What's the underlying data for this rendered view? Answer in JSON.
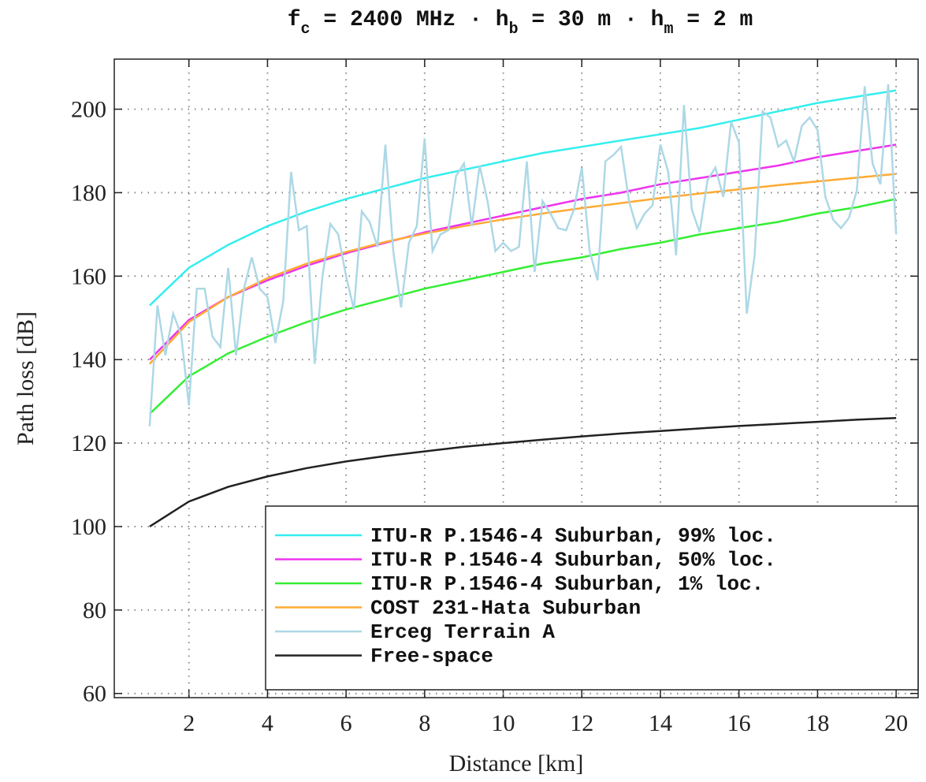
{
  "chart_data": {
    "type": "line",
    "title": [
      "f",
      "c",
      " = 2400 MHz · h",
      "b",
      " = 30 m · h",
      "m",
      " = 2 m"
    ],
    "xlabel": "Distance [km]",
    "ylabel": "Path loss [dB]",
    "xlim": [
      0.1,
      20.56
    ],
    "ylim": [
      59,
      212
    ],
    "xticks": [
      2,
      4,
      6,
      8,
      10,
      12,
      14,
      16,
      18,
      20
    ],
    "yticks": [
      60,
      80,
      100,
      120,
      140,
      160,
      180,
      200
    ],
    "grid": true,
    "legend": "lower right",
    "series": [
      {
        "name": "ITU-R P.1546-4 Suburban, 99% loc.",
        "color": "#33eeee",
        "x": [
          1,
          2,
          3,
          4,
          5,
          6,
          7,
          8,
          9,
          10,
          11,
          12,
          13,
          14,
          15,
          16,
          17,
          18,
          19,
          20
        ],
        "values": [
          153,
          162,
          167.5,
          172,
          175.5,
          178.5,
          181,
          183.5,
          185.5,
          187.5,
          189.5,
          191,
          192.5,
          194,
          195.5,
          197.5,
          199.5,
          201.5,
          203,
          204.5
        ]
      },
      {
        "name": "ITU-R P.1546-4 Suburban, 50% loc.",
        "color": "#ee33ee",
        "x": [
          1,
          2,
          3,
          4,
          5,
          6,
          7,
          8,
          9,
          10,
          11,
          12,
          13,
          14,
          15,
          16,
          17,
          18,
          19,
          20
        ],
        "values": [
          140,
          149.5,
          155,
          159,
          162.5,
          165.5,
          168,
          170.5,
          172.5,
          174.5,
          176.5,
          178.5,
          180,
          182,
          183.5,
          185,
          186.5,
          188.5,
          190,
          191.5
        ]
      },
      {
        "name": "ITU-R P.1546-4 Suburban, 1% loc.",
        "color": "#33ee33",
        "x": [
          1,
          2,
          3,
          4,
          5,
          6,
          7,
          8,
          9,
          10,
          11,
          12,
          13,
          14,
          15,
          16,
          17,
          18,
          19,
          20
        ],
        "values": [
          127,
          136,
          141.5,
          145.5,
          149,
          152,
          154.5,
          157,
          159,
          161,
          163,
          164.5,
          166.5,
          168,
          170,
          171.5,
          173,
          175,
          176.5,
          178.5
        ]
      },
      {
        "name": "COST 231-Hata Suburban",
        "color": "#ffaa33",
        "x": [
          1,
          2,
          3,
          4,
          5,
          6,
          7,
          8,
          9,
          10,
          11,
          12,
          13,
          14,
          15,
          16,
          17,
          18,
          19,
          20
        ],
        "values": [
          139,
          149,
          155,
          159.5,
          163,
          165.8,
          168.2,
          170.2,
          172,
          173.6,
          175,
          176.3,
          177.5,
          178.7,
          179.8,
          180.8,
          181.8,
          182.7,
          183.6,
          184.5
        ]
      },
      {
        "name": "Erceg Terrain A",
        "color": "#add8e6",
        "x": [
          1,
          1.2,
          1.4,
          1.6,
          1.8,
          2,
          2.2,
          2.4,
          2.6,
          2.8,
          3,
          3.2,
          3.4,
          3.6,
          3.8,
          4,
          4.2,
          4.4,
          4.6,
          4.8,
          5,
          5.2,
          5.4,
          5.6,
          5.8,
          6,
          6.2,
          6.4,
          6.6,
          6.8,
          7,
          7.2,
          7.4,
          7.6,
          7.8,
          8,
          8.2,
          8.4,
          8.6,
          8.8,
          9,
          9.2,
          9.4,
          9.6,
          9.8,
          10,
          10.2,
          10.4,
          10.6,
          10.8,
          11,
          11.2,
          11.4,
          11.6,
          11.8,
          12,
          12.2,
          12.4,
          12.6,
          12.8,
          13,
          13.2,
          13.4,
          13.6,
          13.8,
          14,
          14.2,
          14.4,
          14.6,
          14.8,
          15,
          15.2,
          15.4,
          15.6,
          15.8,
          16,
          16.2,
          16.4,
          16.6,
          16.8,
          17,
          17.2,
          17.4,
          17.6,
          17.8,
          18,
          18.2,
          18.4,
          18.6,
          18.8,
          19,
          19.2,
          19.4,
          19.6,
          19.8,
          20
        ],
        "values": [
          124,
          153,
          141,
          151,
          146,
          129,
          157,
          157,
          145.5,
          143,
          162,
          141,
          157,
          164.5,
          157,
          155,
          144,
          154,
          185,
          171,
          172,
          139,
          160,
          172.5,
          170,
          160,
          152,
          175.5,
          173,
          167,
          191.5,
          166,
          152.5,
          168,
          172,
          193,
          166,
          170,
          171,
          184,
          187,
          172,
          186.5,
          178,
          166,
          168,
          166,
          167,
          187.5,
          161,
          178,
          175,
          171.5,
          171,
          176,
          186,
          166,
          159,
          187.5,
          189,
          191,
          178,
          171.5,
          175,
          177,
          191.5,
          185,
          165,
          201,
          176,
          170.5,
          183,
          186,
          179,
          197,
          192,
          151,
          165,
          199.5,
          198,
          191,
          192.5,
          187.5,
          196,
          198,
          195,
          179,
          173.5,
          171.5,
          174,
          180.5,
          205.5,
          187,
          182,
          206,
          170
        ]
      },
      {
        "name": "Free-space",
        "color": "#222222",
        "x": [
          1,
          2,
          3,
          4,
          5,
          6,
          7,
          8,
          9,
          10,
          11,
          12,
          13,
          14,
          15,
          16,
          17,
          18,
          19,
          20
        ],
        "values": [
          100,
          106,
          109.5,
          112,
          114,
          115.6,
          116.9,
          118,
          119.1,
          120,
          120.8,
          121.6,
          122.3,
          122.9,
          123.5,
          124.1,
          124.6,
          125.1,
          125.6,
          126
        ]
      }
    ]
  }
}
